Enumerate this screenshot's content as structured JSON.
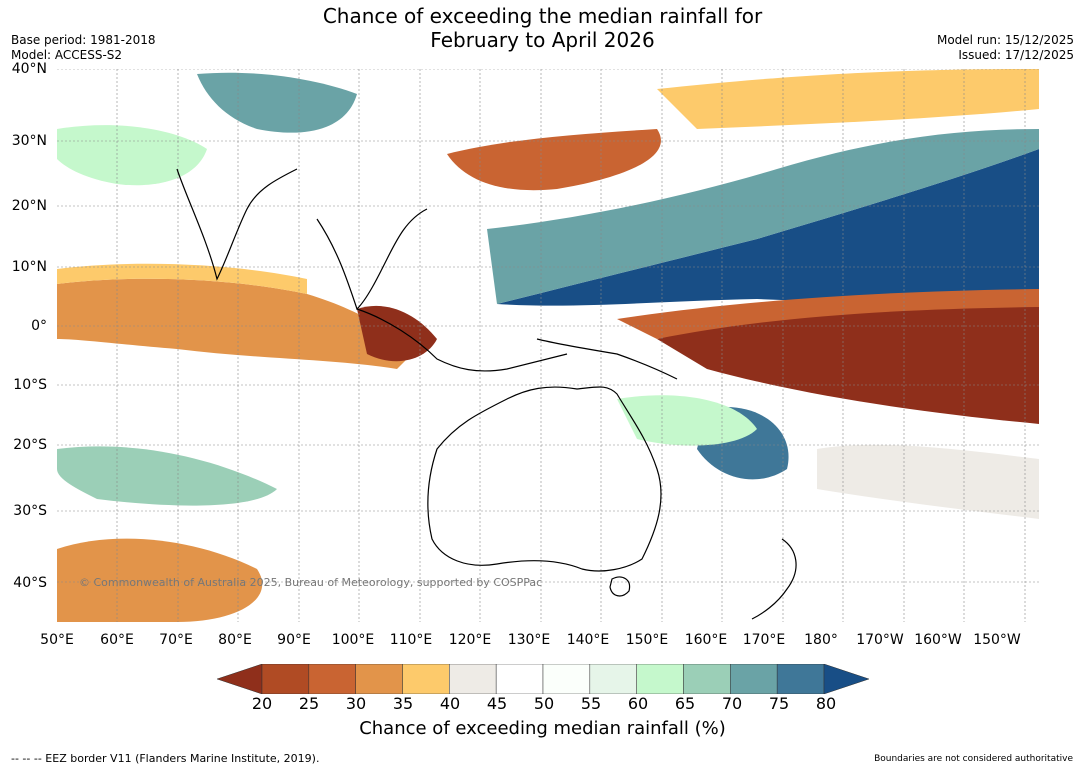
{
  "title_line1": "Chance of exceeding the median rainfall for",
  "title_line2": "February to April 2026",
  "meta": {
    "base_period": "Base period: 1981-2018",
    "model": "Model: ACCESS-S2",
    "model_run": "Model run: 15/12/2025",
    "issued": "Issued: 17/12/2025"
  },
  "lat_labels": [
    "40°N",
    "30°N",
    "20°N",
    "10°N",
    "0°",
    "10°S",
    "20°S",
    "30°S",
    "40°S"
  ],
  "lon_labels": [
    "50°E",
    "60°E",
    "70°E",
    "80°E",
    "90°E",
    "100°E",
    "110°E",
    "120°E",
    "130°E",
    "140°E",
    "150°E",
    "160°E",
    "170°E",
    "180°",
    "170°W",
    "160°W",
    "150°W"
  ],
  "copyright": "© Commonwealth of Australia 2025, Bureau of Meteorology, supported by COSPPac",
  "colorbar": {
    "labels": [
      "20",
      "25",
      "30",
      "35",
      "40",
      "45",
      "50",
      "55",
      "60",
      "65",
      "70",
      "75",
      "80"
    ],
    "colors": [
      "#8f2f1b",
      "#b04b24",
      "#c96432",
      "#e2944a",
      "#fdca6b",
      "#eeebe6",
      "#ffffff",
      "#fbfffb",
      "#e6f5e9",
      "#c5f8cc",
      "#9bcfb7",
      "#6aa3a6",
      "#3f7798",
      "#184e86"
    ],
    "title": "Chance of exceeding median rainfall (%)"
  },
  "footer": {
    "left": "-- -- -- EEZ border V11 (Flanders Marine Institute, 2019).",
    "right": "Boundaries are not considered authoritative"
  },
  "map_colors": {
    "white": "#ffffff",
    "grey": "#eeebe6",
    "lightgreen": "#c5f8cc",
    "midgreen": "#9bcfb7",
    "teal": "#6aa3a6",
    "blue": "#3f7798",
    "darkblue": "#184e86",
    "yellow": "#fdca6b",
    "orange": "#e2944a",
    "brown": "#c96432",
    "darkbrown": "#8f2f1b"
  }
}
